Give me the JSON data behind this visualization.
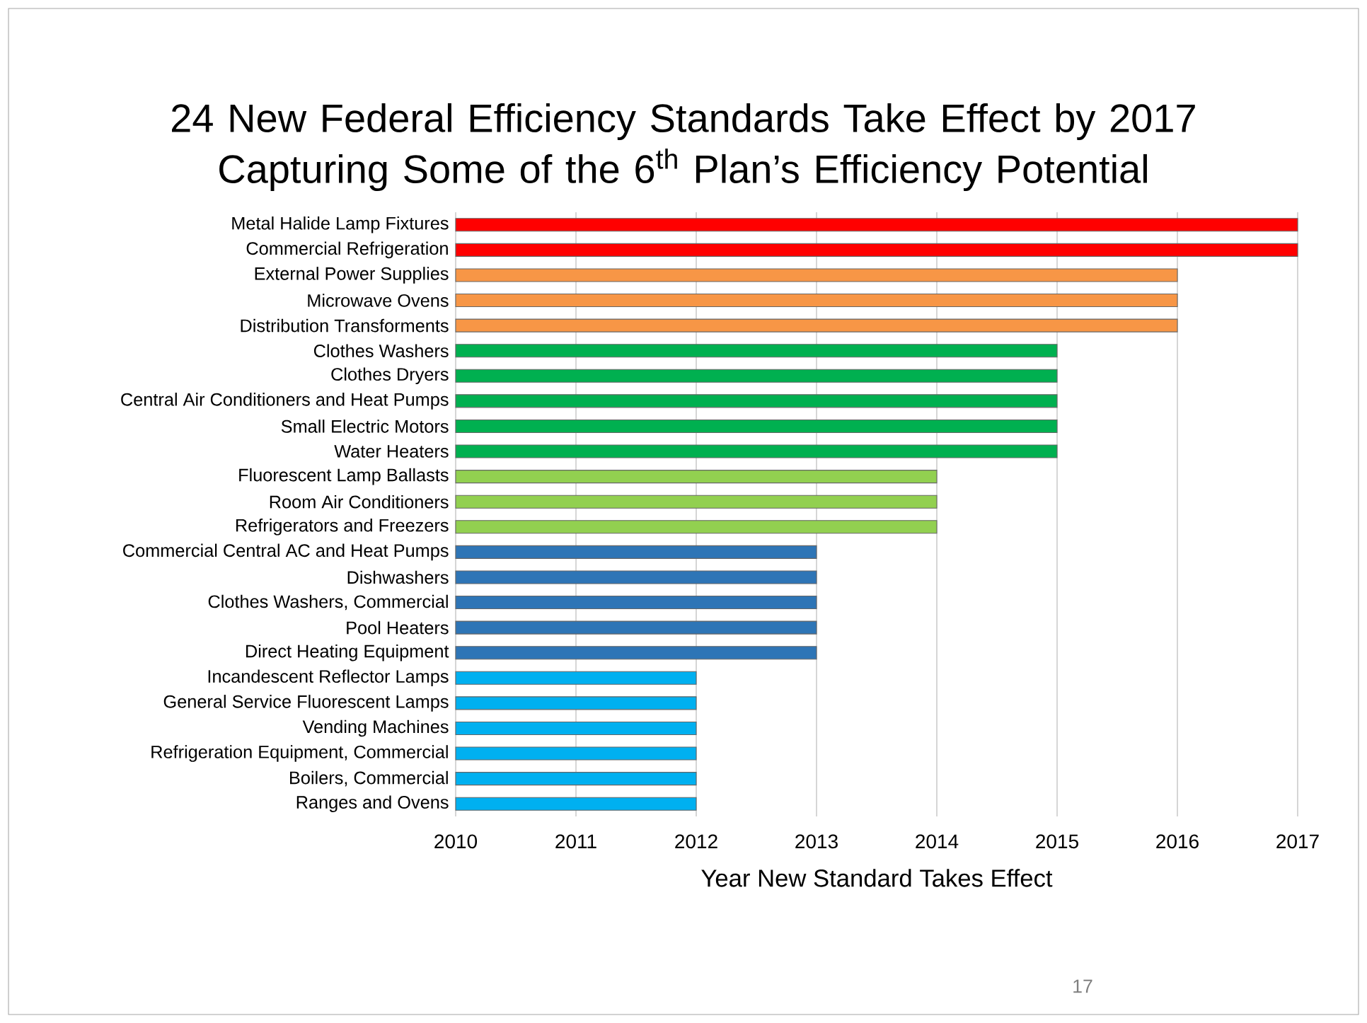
{
  "chart_data": {
    "type": "bar",
    "orientation": "horizontal",
    "title": "24 New Federal Efficiency Standards Take Effect by 2017 Capturing Some of the 6$^{th}$ Plan’s Efficiency Potential",
    "xlabel": "Year New Standard Takes Effect",
    "categories": [
      "Metal Halide Lamp Fixtures",
      "Commercial Refrigeration",
      "External Power Supplies",
      "Microwave Ovens",
      "Distribution Transforments",
      "Clothes Washers",
      "Clothes Dryers",
      "Central Air Conditioners and Heat Pumps",
      "Small Electric Motors",
      "Water Heaters",
      "Fluorescent Lamp Ballasts",
      "Room Air Conditioners",
      "Refrigerators and Freezers",
      "Commercial Central AC and Heat Pumps",
      "Dishwashers",
      "Clothes Washers, Commercial",
      "Pool Heaters",
      "Direct Heating Equipment",
      "Incandescent Reflector Lamps",
      "General Service Fluorescent Lamps",
      "Vending Machines",
      "Refrigeration Equipment, Commercial",
      "Boilers, Commercial",
      "Ranges and Ovens"
    ],
    "values": [
      2017,
      2017,
      2016,
      2016,
      2016,
      2015,
      2015,
      2015,
      2015,
      2015,
      2014,
      2014,
      2014,
      2013,
      2013,
      2013,
      2013,
      2013,
      2012,
      2012,
      2012,
      2012,
      2012,
      2012
    ],
    "colors": [
      "#ff0000",
      "#ff0000",
      "#f79646",
      "#f79646",
      "#f79646",
      "#00b050",
      "#00b050",
      "#00b050",
      "#00b050",
      "#00b050",
      "#92d050",
      "#92d050",
      "#92d050",
      "#2e75b6",
      "#2e75b6",
      "#2e75b6",
      "#2e75b6",
      "#2e75b6",
      "#00b0f0",
      "#00b0f0",
      "#00b0f0",
      "#00b0f0",
      "#00b0f0",
      "#00b0f0"
    ],
    "xlim": [
      2010,
      2017
    ],
    "xticks": [
      2010,
      2011,
      2012,
      2013,
      2014,
      2015,
      2016,
      2017
    ],
    "grid": "x",
    "annotations": [
      "17"
    ]
  }
}
